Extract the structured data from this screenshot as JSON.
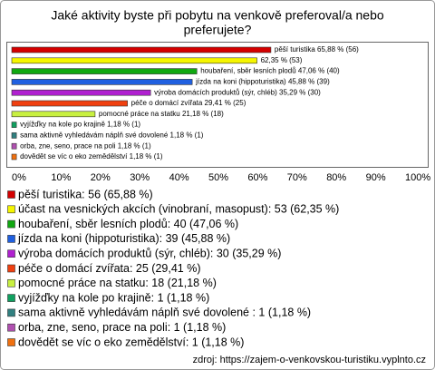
{
  "chart_data": {
    "type": "bar",
    "orientation": "horizontal",
    "title": [
      "Jaké aktivity byste při pobytu na venkově preferoval/a nebo",
      "preferujete?"
    ],
    "categories": [
      "pěší turistika",
      "účast na vesnických akcích (vinobraní, masopust)",
      "houbaření, sběr lesních plodů",
      "jízda na koni (hippoturistika)",
      "výroba domácích produktů (sýr, chléb)",
      "péče o domácí zvířata",
      "pomocné práce na statku",
      "vyjížďky na kole po krajině",
      "sama aktivně vyhledávám náplň své dovolené",
      "orba, zne, seno, prace na poli",
      "dovědět se víc o eko zemědělství"
    ],
    "values": [
      65.88,
      62.35,
      47.06,
      45.88,
      35.29,
      29.41,
      21.18,
      1.18,
      1.18,
      1.18,
      1.18
    ],
    "value_labels": [
      "pěší turistika 65,88 % (56)",
      "62,35 % (53)",
      "houbaření, sběr lesních plodů 47,06 % (40)",
      "jízda na koni (hippoturistika) 45,88 % (39)",
      "výroba domácích produktů (sýr, chléb) 35,29 % (30)",
      "péče o domácí zvířata 29,41 % (25)",
      "pomocné práce na statku 21,18 % (18)",
      "vyjížďky na kole po krajině 1,18 % (1)",
      "sama aktivně vyhledávám náplň své dovolené  1,18 % (1)",
      "orba, zne, seno, prace na poli 1,18 % (1)",
      "dovědět se víc o eko zemědělství 1,18 % (1)"
    ],
    "colors": [
      "#d40000",
      "#f5f500",
      "#10a810",
      "#2060e0",
      "#b020d0",
      "#f04010",
      "#c8f040",
      "#10a060",
      "#308080",
      "#b050b0",
      "#f07010"
    ],
    "xlim": [
      0,
      100
    ],
    "xticks": [
      {
        "value": 0,
        "label": "0%"
      },
      {
        "value": 10,
        "label": "10%"
      },
      {
        "value": 20,
        "label": "20%"
      },
      {
        "value": 30,
        "label": "30%"
      },
      {
        "value": 40,
        "label": "40%"
      },
      {
        "value": 50,
        "label": "50%"
      },
      {
        "value": 60,
        "label": "60%"
      },
      {
        "value": 70,
        "label": "70%"
      },
      {
        "value": 80,
        "label": "80%"
      },
      {
        "value": 90,
        "label": "90%"
      },
      {
        "value": 100,
        "label": "100%"
      }
    ],
    "legend": [
      "pěší turistika: 56 (65,88 %)",
      "účast na vesnických akcích (vinobraní, masopust): 53 (62,35 %)",
      "houbaření, sběr lesních plodů: 40 (47,06 %)",
      "jízda na koni (hippoturistika): 39 (45,88 %)",
      "výroba domácích produktů (sýr, chléb): 30 (35,29 %)",
      "péče o domácí zvířata: 25 (29,41 %)",
      "pomocné práce na statku: 18 (21,18 %)",
      "vyjížďky na kole po krajině: 1 (1,18 %)",
      "sama aktivně vyhledávám náplň své dovolené : 1 (1,18 %)",
      "orba, zne, seno, prace na poli: 1 (1,18 %)",
      "dovědět se víc o eko zemědělství: 1 (1,18 %)"
    ],
    "source": "zdroj: https://zajem-o-venkovskou-turistiku.vyplnto.cz"
  }
}
